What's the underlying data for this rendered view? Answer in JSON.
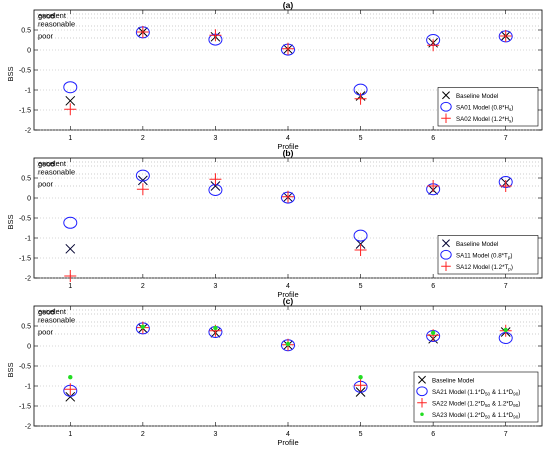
{
  "chart_data": [
    {
      "type": "scatter",
      "title": "(a)",
      "xlabel": "Profile",
      "ylabel": "BSS",
      "xlim": [
        0.5,
        7.5
      ],
      "ylim": [
        -2,
        1
      ],
      "x_ticks": [
        1,
        2,
        3,
        4,
        5,
        6,
        7
      ],
      "y_ticks": [
        -2,
        -1.5,
        -1,
        -0.5,
        0,
        0.5
      ],
      "y_tick_labels": [
        "-2",
        "-1.5",
        "-1",
        "-0.5",
        "0",
        "0.5"
      ],
      "grid": "horizontal dotted",
      "legend_position": "bottom-right",
      "skill_levels": [
        {
          "label": "excelent",
          "value": 0.9
        },
        {
          "label": "good",
          "value": 0.8
        },
        {
          "label": "reasonable",
          "value": 0.6
        },
        {
          "label": "poor",
          "value": 0.3
        }
      ],
      "series": [
        {
          "name": "Baseline Model",
          "marker": "x",
          "color": "#000000",
          "x": [
            1,
            2,
            3,
            4,
            5,
            6,
            7
          ],
          "values": [
            -1.27,
            0.45,
            0.33,
            0.02,
            -1.15,
            0.18,
            0.35
          ]
        },
        {
          "name_parts": [
            "SA01 Model (0.8*H",
            "s",
            ")"
          ],
          "marker": "circle",
          "color": "#2020ff",
          "x": [
            1,
            2,
            3,
            4,
            5,
            6,
            7
          ],
          "values": [
            -0.93,
            0.44,
            0.26,
            0.01,
            -0.99,
            0.25,
            0.34
          ]
        },
        {
          "name_parts": [
            "SA02 Model (1.2*H",
            "s",
            ")"
          ],
          "marker": "plus",
          "color": "#ff2020",
          "x": [
            1,
            2,
            3,
            4,
            5,
            6,
            7
          ],
          "values": [
            -1.48,
            0.45,
            0.37,
            0.03,
            -1.22,
            0.12,
            0.35
          ]
        }
      ]
    },
    {
      "type": "scatter",
      "title": "(b)",
      "xlabel": "Profile",
      "ylabel": "BSS",
      "xlim": [
        0.5,
        7.5
      ],
      "ylim": [
        -2,
        1
      ],
      "x_ticks": [
        1,
        2,
        3,
        4,
        5,
        6,
        7
      ],
      "y_ticks": [
        -2,
        -1.5,
        -1,
        -0.5,
        0,
        0.5
      ],
      "y_tick_labels": [
        "-2",
        "-1.5",
        "-1",
        "-0.5",
        "0",
        "0.5"
      ],
      "grid": "horizontal dotted",
      "legend_position": "bottom-right",
      "skill_levels": [
        {
          "label": "excelent",
          "value": 0.9
        },
        {
          "label": "good",
          "value": 0.8
        },
        {
          "label": "reasonable",
          "value": 0.6
        },
        {
          "label": "poor",
          "value": 0.3
        }
      ],
      "series": [
        {
          "name": "Baseline Model",
          "marker": "x",
          "color": "#000030",
          "x": [
            1,
            2,
            3,
            4,
            5,
            6,
            7
          ],
          "values": [
            -1.27,
            0.44,
            0.3,
            0.02,
            -1.15,
            0.2,
            0.38
          ]
        },
        {
          "name_parts": [
            "SA11 Model (0.8*T",
            "p",
            ")"
          ],
          "marker": "circle",
          "color": "#2020ff",
          "x": [
            1,
            2,
            3,
            4,
            5,
            6,
            7
          ],
          "values": [
            -0.62,
            0.56,
            0.2,
            0.01,
            -0.94,
            0.22,
            0.4
          ]
        },
        {
          "name_parts": [
            "SA12 Model (1.2*T",
            "p",
            ")"
          ],
          "marker": "plus",
          "color": "#ff2020",
          "x": [
            1,
            2,
            3,
            4,
            5,
            6,
            7
          ],
          "values": [
            -1.95,
            0.22,
            0.47,
            0.03,
            -1.3,
            0.3,
            0.3
          ]
        }
      ]
    },
    {
      "type": "scatter",
      "title": "(c)",
      "xlabel": "Profile",
      "ylabel": "BSS",
      "xlim": [
        0.5,
        7.5
      ],
      "ylim": [
        -2,
        1
      ],
      "x_ticks": [
        1,
        2,
        3,
        4,
        5,
        6,
        7
      ],
      "y_ticks": [
        -2,
        -1.5,
        -1,
        -0.5,
        0,
        0.5
      ],
      "y_tick_labels": [
        "-2",
        "-1.5",
        "-1",
        "-0.5",
        "0",
        "0.5"
      ],
      "grid": "horizontal dotted",
      "legend_position": "bottom-right",
      "skill_levels": [
        {
          "label": "excelent",
          "value": 0.9
        },
        {
          "label": "good",
          "value": 0.8
        },
        {
          "label": "reasonable",
          "value": 0.6
        },
        {
          "label": "poor",
          "value": 0.3
        }
      ],
      "series": [
        {
          "name": "Baseline Model",
          "marker": "x",
          "color": "#000000",
          "x": [
            1,
            2,
            3,
            4,
            5,
            6,
            7
          ],
          "values": [
            -1.27,
            0.44,
            0.33,
            0.02,
            -1.15,
            0.18,
            0.35
          ]
        },
        {
          "name_parts": [
            "SA21 Model (1.1*D",
            "50",
            " & 1.1*D",
            "90",
            ")"
          ],
          "marker": "circle",
          "color": "#2020ff",
          "x": [
            1,
            2,
            3,
            4,
            5,
            6,
            7
          ],
          "values": [
            -1.12,
            0.44,
            0.35,
            0.02,
            -1.02,
            0.25,
            0.2
          ]
        },
        {
          "name_parts": [
            "SA22 Model (1.2*D",
            "50",
            " & 1.2*D",
            "90",
            ")"
          ],
          "marker": "plus",
          "color": "#ff2020",
          "x": [
            1,
            2,
            3,
            4,
            5,
            6,
            7
          ],
          "values": [
            -1.08,
            0.46,
            0.38,
            0.03,
            -0.98,
            0.27,
            0.38
          ]
        },
        {
          "name_parts": [
            "SA23 Model (1.2*D",
            "50",
            " & 1.1*D",
            "90",
            ")"
          ],
          "marker": "dot",
          "color": "#22dd22",
          "x": [
            1,
            2,
            3,
            4,
            5,
            6,
            7
          ],
          "values": [
            -0.78,
            0.48,
            0.45,
            0.05,
            -0.78,
            0.33,
            0.4
          ]
        }
      ]
    }
  ]
}
